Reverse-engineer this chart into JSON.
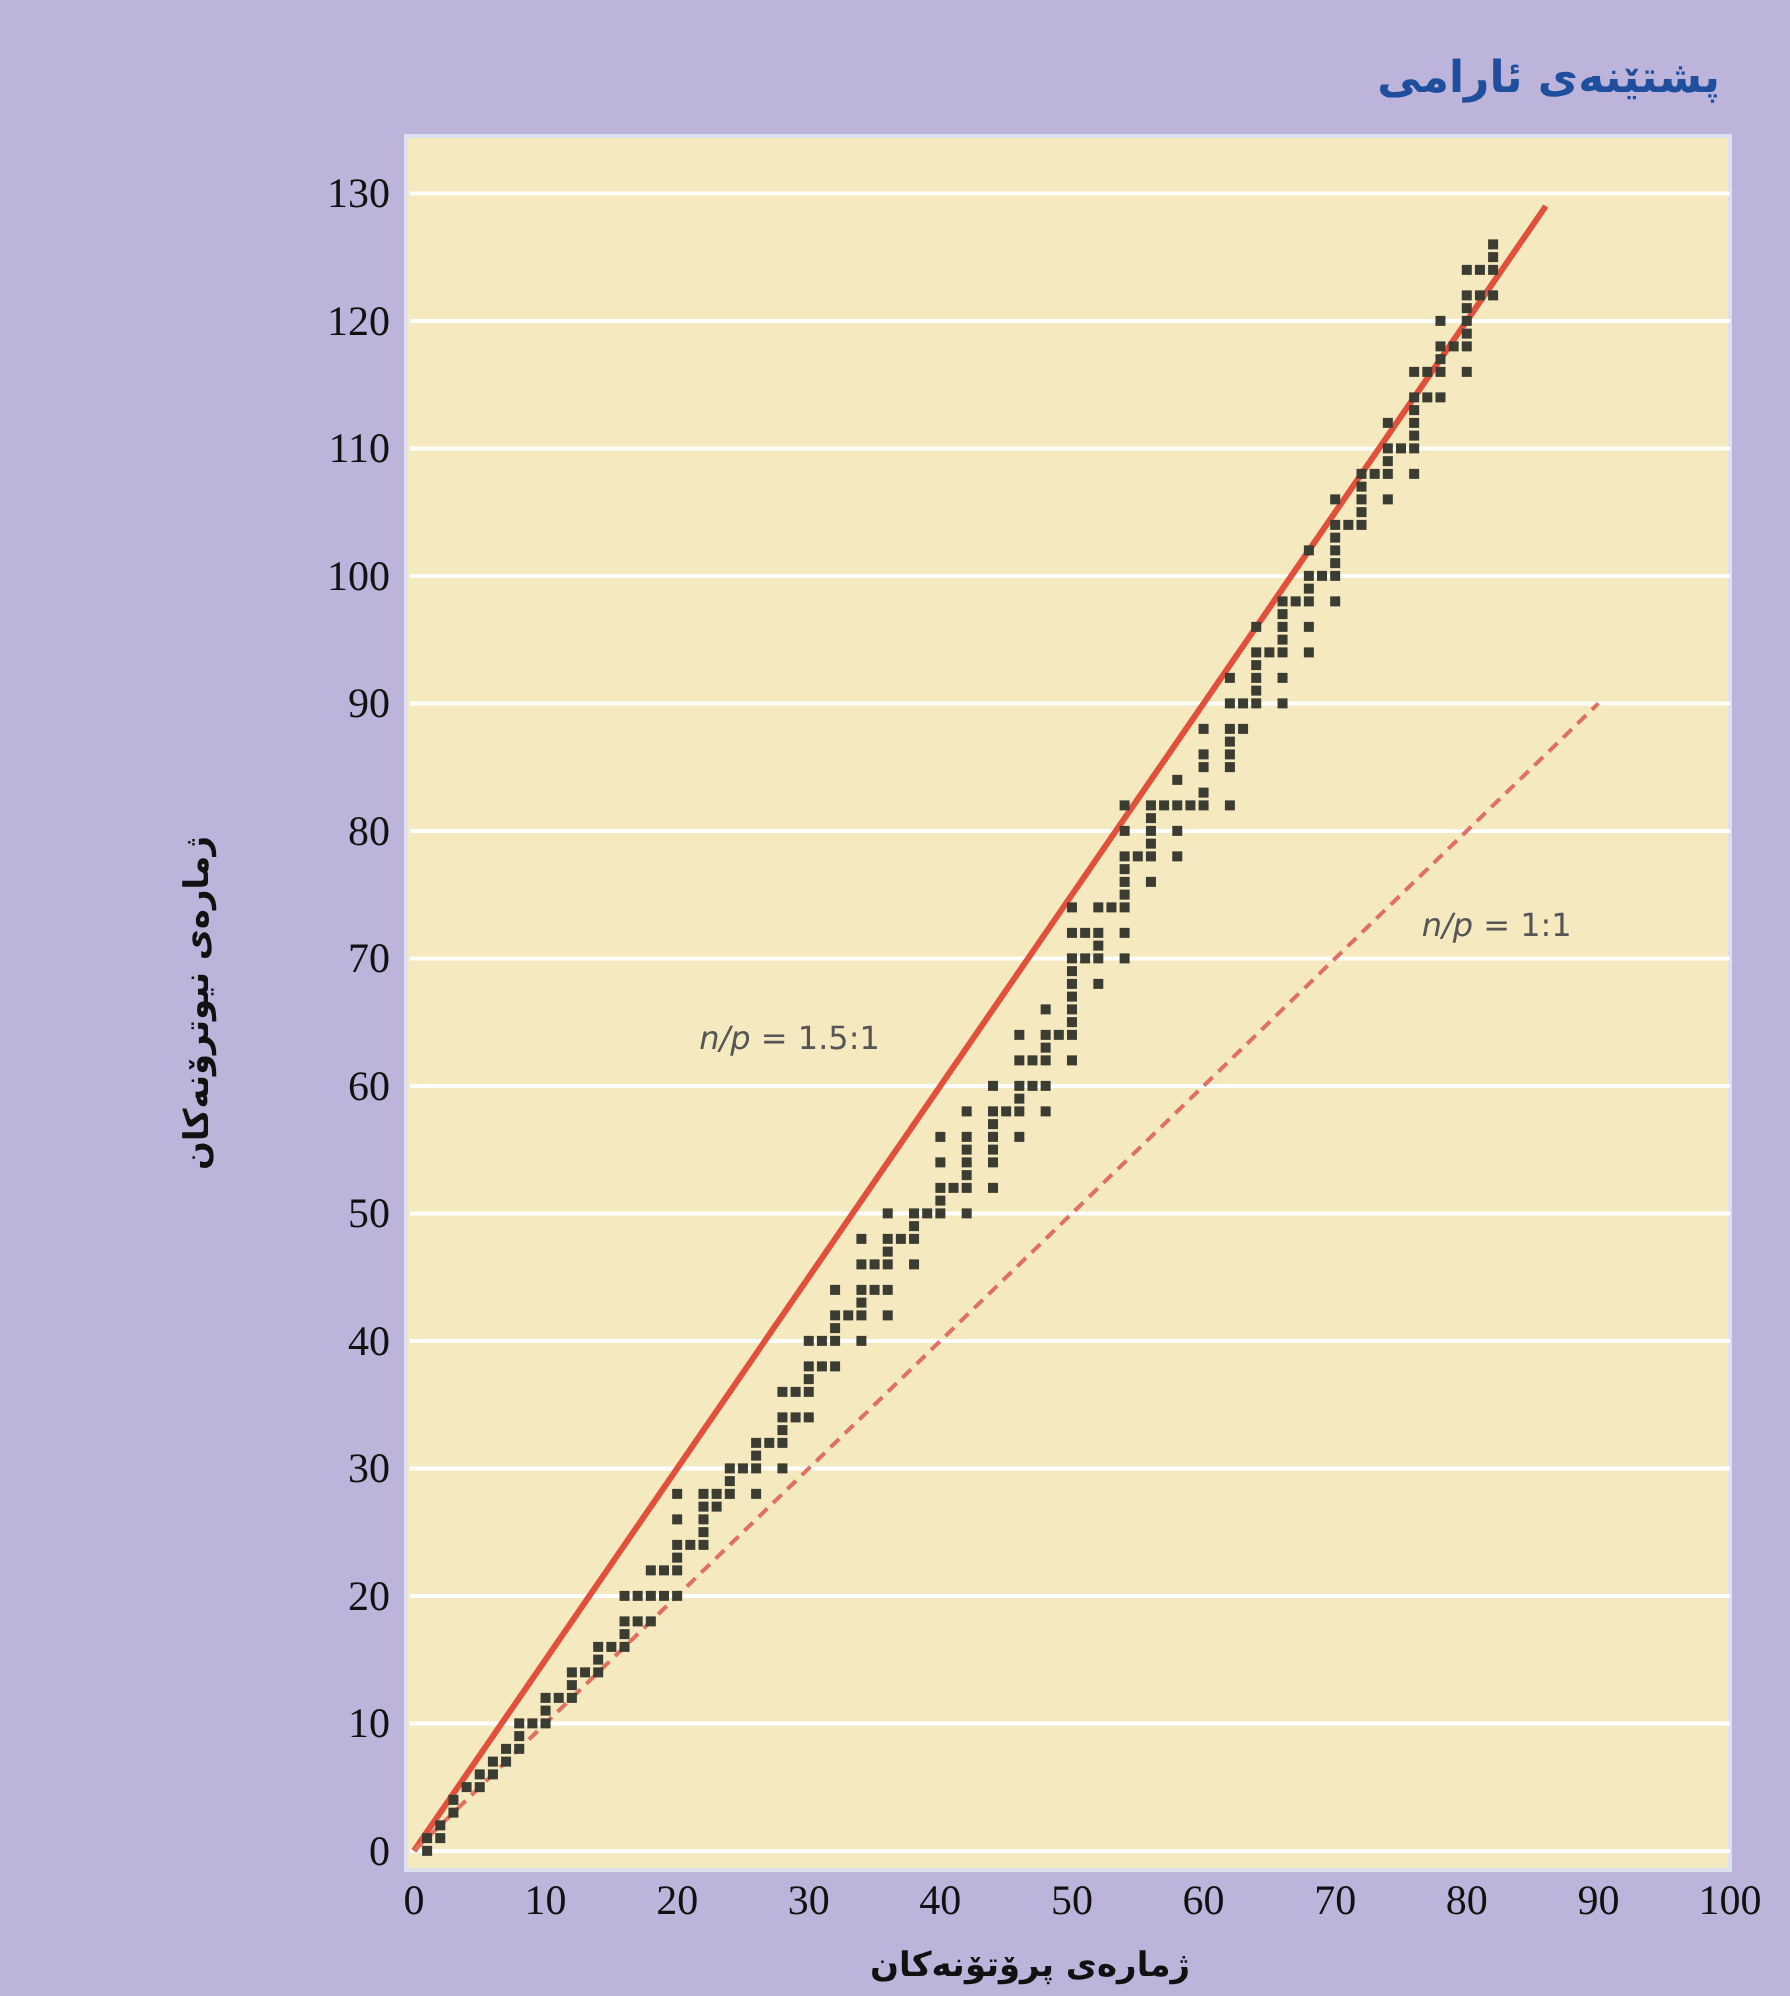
{
  "chart_data": {
    "type": "scatter",
    "title": "پشتێنەی ئارامی",
    "xlabel": "ژمارەی پرۆتۆنەکان",
    "ylabel": "ژمارەی نیوترۆنەکان",
    "xlim": [
      -0.3,
      100
    ],
    "ylim": [
      -1.5,
      134.5
    ],
    "xticks": [
      0,
      10,
      20,
      30,
      40,
      50,
      60,
      70,
      80,
      90,
      100
    ],
    "yticks": [
      0,
      10,
      20,
      30,
      40,
      50,
      60,
      70,
      80,
      90,
      100,
      110,
      120,
      130
    ],
    "grid": "y",
    "series": [
      {
        "color": "#3b3d33",
        "marker": "square",
        "x": [
          1,
          1,
          2,
          2,
          3,
          3,
          4,
          5,
          5,
          6,
          6,
          7,
          7,
          8,
          8,
          8,
          9,
          10,
          10,
          10,
          11,
          12,
          12,
          12,
          13,
          14,
          14,
          14,
          15,
          16,
          16,
          16,
          16,
          17,
          17,
          18,
          18,
          18,
          19,
          19,
          20,
          20,
          20,
          20,
          20,
          20,
          21,
          22,
          22,
          22,
          22,
          22,
          23,
          23,
          24,
          24,
          24,
          25,
          26,
          26,
          26,
          26,
          27,
          28,
          28,
          28,
          28,
          28,
          29,
          29,
          30,
          30,
          30,
          30,
          30,
          31,
          31,
          32,
          32,
          32,
          32,
          32,
          33,
          34,
          34,
          34,
          34,
          34,
          34,
          35,
          35,
          36,
          36,
          36,
          36,
          36,
          36,
          37,
          38,
          38,
          38,
          38,
          39,
          40,
          40,
          40,
          40,
          40,
          41,
          42,
          42,
          42,
          42,
          42,
          42,
          42,
          44,
          44,
          44,
          44,
          44,
          44,
          44,
          45,
          46,
          46,
          46,
          46,
          46,
          46,
          47,
          47,
          48,
          48,
          48,
          48,
          48,
          48,
          49,
          50,
          50,
          50,
          50,
          50,
          50,
          50,
          50,
          50,
          50,
          51,
          51,
          52,
          52,
          52,
          52,
          52,
          53,
          54,
          54,
          54,
          54,
          54,
          54,
          54,
          54,
          54,
          55,
          56,
          56,
          56,
          56,
          56,
          56,
          57,
          58,
          58,
          58,
          58,
          59,
          60,
          60,
          60,
          60,
          60,
          62,
          62,
          62,
          62,
          62,
          62,
          62,
          63,
          63,
          64,
          64,
          64,
          64,
          64,
          64,
          65,
          66,
          66,
          66,
          66,
          66,
          66,
          66,
          67,
          68,
          68,
          68,
          68,
          68,
          68,
          69,
          70,
          70,
          70,
          70,
          70,
          70,
          70,
          71,
          72,
          72,
          72,
          72,
          72,
          73,
          74,
          74,
          74,
          74,
          74,
          75,
          76,
          76,
          76,
          76,
          76,
          76,
          76,
          77,
          77,
          78,
          78,
          78,
          78,
          78,
          79,
          80,
          80,
          80,
          80,
          80,
          80,
          80,
          81,
          81,
          82,
          82,
          82,
          82
        ],
        "values": [
          0,
          1,
          1,
          2,
          3,
          4,
          5,
          5,
          6,
          6,
          7,
          7,
          8,
          8,
          9,
          10,
          10,
          10,
          11,
          12,
          12,
          12,
          13,
          14,
          14,
          14,
          15,
          16,
          16,
          16,
          17,
          18,
          20,
          18,
          20,
          18,
          20,
          22,
          20,
          22,
          20,
          22,
          23,
          24,
          26,
          28,
          24,
          24,
          25,
          26,
          27,
          28,
          27,
          28,
          28,
          29,
          30,
          30,
          28,
          30,
          31,
          32,
          32,
          30,
          32,
          33,
          34,
          36,
          34,
          36,
          34,
          36,
          37,
          38,
          40,
          38,
          40,
          38,
          40,
          41,
          42,
          44,
          42,
          40,
          42,
          43,
          44,
          46,
          48,
          44,
          46,
          42,
          44,
          46,
          47,
          48,
          50,
          48,
          46,
          48,
          49,
          50,
          50,
          50,
          51,
          52,
          54,
          56,
          52,
          50,
          52,
          53,
          54,
          55,
          56,
          58,
          52,
          54,
          55,
          56,
          57,
          58,
          60,
          58,
          56,
          58,
          59,
          60,
          62,
          64,
          60,
          62,
          58,
          60,
          62,
          63,
          64,
          66,
          64,
          62,
          64,
          65,
          66,
          67,
          68,
          69,
          70,
          72,
          74,
          70,
          72,
          68,
          70,
          71,
          72,
          74,
          74,
          70,
          72,
          74,
          75,
          76,
          77,
          78,
          80,
          82,
          78,
          76,
          78,
          79,
          80,
          81,
          82,
          82,
          78,
          80,
          82,
          84,
          82,
          82,
          83,
          85,
          86,
          88,
          82,
          85,
          86,
          87,
          88,
          90,
          92,
          88,
          90,
          90,
          91,
          92,
          93,
          94,
          96,
          94,
          90,
          92,
          94,
          95,
          96,
          97,
          98,
          98,
          94,
          96,
          98,
          99,
          100,
          102,
          100,
          98,
          100,
          101,
          102,
          103,
          104,
          106,
          104,
          104,
          105,
          106,
          107,
          108,
          108,
          106,
          108,
          109,
          110,
          112,
          110,
          108,
          110,
          111,
          112,
          113,
          114,
          116,
          114,
          116,
          114,
          116,
          117,
          118,
          120,
          118,
          116,
          118,
          119,
          120,
          121,
          122,
          124,
          122,
          124,
          122,
          124,
          125,
          126
        ]
      },
      {
        "type": "line",
        "name": "*n/p* = 1.5:1",
        "color": "#e2503c",
        "line_style": "solid",
        "x": [
          0,
          86
        ],
        "values": [
          0,
          129
        ]
      },
      {
        "type": "line",
        "name": "*n/p* = 1:1",
        "color": "#e27060",
        "line_style": "dashed",
        "x": [
          0,
          90
        ],
        "values": [
          0,
          90
        ]
      }
    ]
  }
}
